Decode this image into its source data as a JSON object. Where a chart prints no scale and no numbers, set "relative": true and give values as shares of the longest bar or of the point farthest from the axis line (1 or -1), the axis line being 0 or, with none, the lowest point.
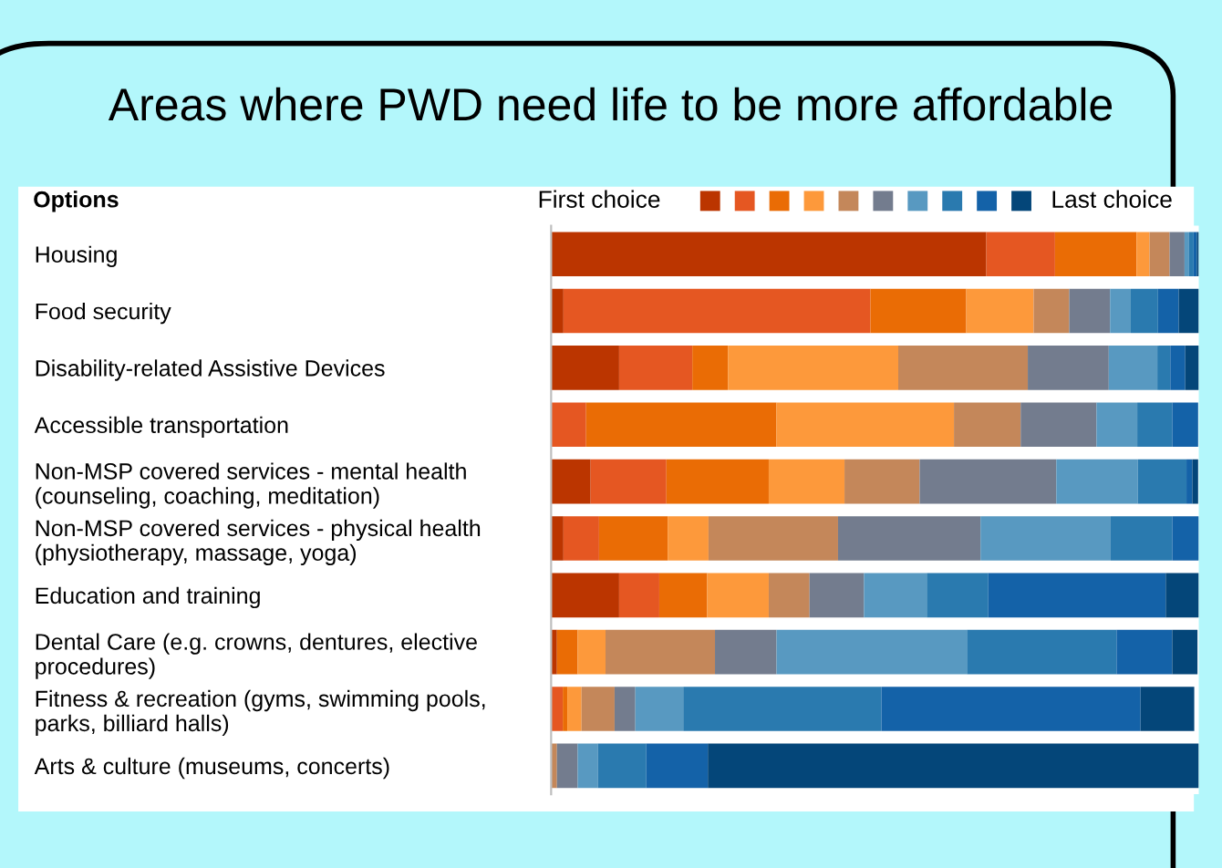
{
  "chart_data": {
    "type": "bar",
    "orientation": "horizontal",
    "stacked": true,
    "relative": true,
    "title": "Areas where PWD need life to be more affordable",
    "ylabel": "Options",
    "annotations": [
      "First choice",
      "Last choice"
    ],
    "categories": [
      "Housing",
      "Food security",
      "Disability-related Assistive Devices",
      "Accessible transportation",
      "Non-MSP covered services - mental health\n(counseling, coaching, meditation)",
      "Non-MSP covered services - physical health\n(physiotherapy, massage, yoga)",
      "Education and training",
      "Dental Care (e.g. crowns, dentures, elective\nprocedures)",
      "Fitness & recreation (gyms, swimming pools,\nparks, billiard halls)",
      "Arts & culture (museums, concerts)"
    ],
    "series": [
      {
        "color": "#bb3500",
        "values": [
          0.672,
          0.019,
          0.105,
          0,
          0.061,
          0.019,
          0.105,
          0.009,
          0,
          0
        ]
      },
      {
        "color": "#e55722",
        "values": [
          0.106,
          0.474,
          0.113,
          0.054,
          0.117,
          0.055,
          0.062,
          0,
          0.018,
          0
        ]
      },
      {
        "color": "#ea6c05",
        "values": [
          0.126,
          0.148,
          0.055,
          0.294,
          0.158,
          0.106,
          0.074,
          0.032,
          0.007,
          0
        ]
      },
      {
        "color": "#fd993b",
        "values": [
          0.02,
          0.104,
          0.263,
          0.274,
          0.117,
          0.063,
          0.095,
          0.043,
          0.022,
          0
        ]
      },
      {
        "color": "#c4875a",
        "values": [
          0.031,
          0.055,
          0.2,
          0.103,
          0.116,
          0.2,
          0.063,
          0.169,
          0.051,
          0.009
        ]
      },
      {
        "color": "#737c8e",
        "values": [
          0.023,
          0.063,
          0.125,
          0.117,
          0.211,
          0.22,
          0.084,
          0.095,
          0.032,
          0.032
        ]
      },
      {
        "color": "#5899c1",
        "values": [
          0.007,
          0.032,
          0.075,
          0.063,
          0.126,
          0.201,
          0.097,
          0.294,
          0.074,
          0.031
        ]
      },
      {
        "color": "#2a7aaf",
        "values": [
          0.007,
          0.042,
          0.02,
          0.054,
          0.075,
          0.095,
          0.095,
          0.231,
          0.306,
          0.075
        ]
      },
      {
        "color": "#1462a8",
        "values": [
          0.005,
          0.032,
          0.023,
          0.04,
          0.009,
          0.041,
          0.274,
          0.086,
          0.4,
          0.095
        ]
      },
      {
        "color": "#044679",
        "values": [
          0.003,
          0.031,
          0.021,
          0,
          0.009,
          0,
          0.051,
          0.039,
          0.083,
          0.758
        ]
      }
    ]
  }
}
